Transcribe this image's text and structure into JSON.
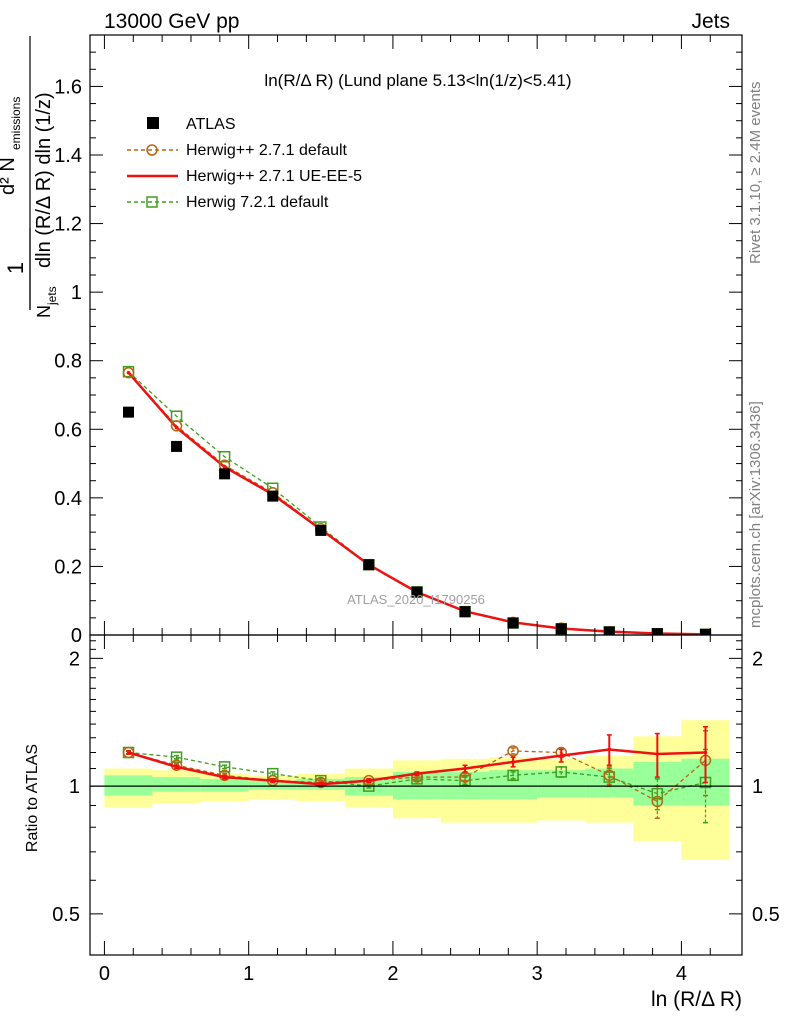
{
  "header": {
    "left": "13000 GeV pp",
    "right": "Jets"
  },
  "side_labels": {
    "rivet": "Rivet 3.1.10, ≥ 2.4M events",
    "mcplots": "mcplots.cern.ch [arXiv:1306.3436]"
  },
  "watermark": "ATLAS_2020_I1790256",
  "colors": {
    "atlas": "#000000",
    "herwigpp_default": "#b8650e",
    "herwigpp_ueee5": "#ee1111",
    "herwig7": "#3f9d1f",
    "band_inner": "#99ff99",
    "band_outer": "#ffff99"
  },
  "chart_data": [
    {
      "type": "line",
      "panel": "main",
      "title": "ln(R/Δ R) (Lund plane 5.13<ln(1/z)<5.41)",
      "ylabel": "1/N_jets d²N_emissions / dln (R/Δ R) dln (1/z)",
      "xlim": [
        -0.1,
        4.42
      ],
      "ylim": [
        0,
        1.75
      ],
      "yticks": [
        "0",
        "0.2",
        "0.4",
        "0.6",
        "0.8",
        "1",
        "1.2",
        "1.4",
        "1.6"
      ],
      "legend_position": "top-left",
      "x": [
        0.167,
        0.5,
        0.833,
        1.167,
        1.5,
        1.833,
        2.167,
        2.5,
        2.833,
        3.167,
        3.5,
        3.833,
        4.167
      ],
      "series": [
        {
          "name": "ATLAS",
          "style": "square-marker",
          "values": [
            0.65,
            0.55,
            0.47,
            0.405,
            0.305,
            0.205,
            0.125,
            0.068,
            0.035,
            0.018,
            0.009,
            0.004,
            0.002
          ]
        },
        {
          "name": "Herwig++ 2.7.1 default",
          "style": "dashed-circle",
          "values": [
            0.765,
            0.61,
            0.495,
            0.415,
            0.31,
            0.205,
            0.125,
            0.068,
            0.037,
            0.02,
            0.009,
            0.004,
            0.002
          ]
        },
        {
          "name": "Herwig++ 2.7.1 UE-EE-5",
          "style": "solid",
          "values": [
            0.765,
            0.605,
            0.49,
            0.41,
            0.308,
            0.205,
            0.125,
            0.069,
            0.037,
            0.019,
            0.01,
            0.0045,
            0.002
          ]
        },
        {
          "name": "Herwig 7.2.1 default",
          "style": "dashed-square",
          "values": [
            0.768,
            0.638,
            0.52,
            0.428,
            0.315,
            0.205,
            0.126,
            0.068,
            0.035,
            0.018,
            0.009,
            0.0035,
            0.002
          ]
        }
      ]
    },
    {
      "type": "line",
      "panel": "ratio",
      "ylabel": "Ratio to ATLAS",
      "xlabel": "ln (R/Δ R)",
      "xlim": [
        -0.1,
        4.42
      ],
      "ylim": [
        0.4,
        2.27
      ],
      "yticks": [
        "0.5",
        "1",
        "2"
      ],
      "xticks": [
        "0",
        "1",
        "2",
        "3",
        "4"
      ],
      "x": [
        0.167,
        0.5,
        0.833,
        1.167,
        1.5,
        1.833,
        2.167,
        2.5,
        2.833,
        3.167,
        3.5,
        3.833,
        4.167
      ],
      "bands": {
        "edges": [
          0,
          0.333,
          0.667,
          1.0,
          1.333,
          1.667,
          2.0,
          2.333,
          2.667,
          3.0,
          3.333,
          3.667,
          4.0,
          4.333
        ],
        "inner_low": [
          0.95,
          0.97,
          0.97,
          0.98,
          0.98,
          0.95,
          0.93,
          0.93,
          0.93,
          0.94,
          0.94,
          0.9,
          0.9
        ],
        "inner_high": [
          1.06,
          1.05,
          1.04,
          1.03,
          1.04,
          1.05,
          1.08,
          1.08,
          1.09,
          1.09,
          1.1,
          1.14,
          1.16
        ],
        "outer_low": [
          0.89,
          0.91,
          0.92,
          0.93,
          0.92,
          0.89,
          0.84,
          0.82,
          0.82,
          0.83,
          0.82,
          0.74,
          0.67
        ],
        "outer_high": [
          1.1,
          1.09,
          1.07,
          1.06,
          1.07,
          1.1,
          1.15,
          1.16,
          1.17,
          1.16,
          1.18,
          1.31,
          1.43
        ]
      },
      "series": [
        {
          "name": "Herwig++ 2.7.1 default",
          "values": [
            1.2,
            1.12,
            1.06,
            1.03,
            1.02,
            1.03,
            1.05,
            1.05,
            1.21,
            1.2,
            1.06,
            0.92,
            1.15
          ],
          "errors": [
            0.01,
            0.01,
            0.01,
            0.01,
            0.01,
            0.01,
            0.01,
            0.02,
            0.02,
            0.03,
            0.05,
            0.08,
            0.2
          ]
        },
        {
          "name": "Herwig++ 2.7.1 UE-EE-5",
          "values": [
            1.2,
            1.11,
            1.05,
            1.03,
            1.01,
            1.03,
            1.07,
            1.1,
            1.14,
            1.18,
            1.22,
            1.19,
            1.2
          ],
          "errors": [
            0.01,
            0.01,
            0.01,
            0.01,
            0.01,
            0.01,
            0.01,
            0.02,
            0.03,
            0.04,
            0.1,
            0.14,
            0.18
          ]
        },
        {
          "name": "Herwig 7.2.1 default",
          "values": [
            1.2,
            1.17,
            1.11,
            1.07,
            1.03,
            1.0,
            1.04,
            1.03,
            1.06,
            1.08,
            1.05,
            0.96,
            1.02
          ],
          "errors": [
            0.01,
            0.01,
            0.01,
            0.01,
            0.01,
            0.01,
            0.01,
            0.02,
            0.02,
            0.03,
            0.05,
            0.08,
            0.2
          ]
        }
      ]
    }
  ]
}
